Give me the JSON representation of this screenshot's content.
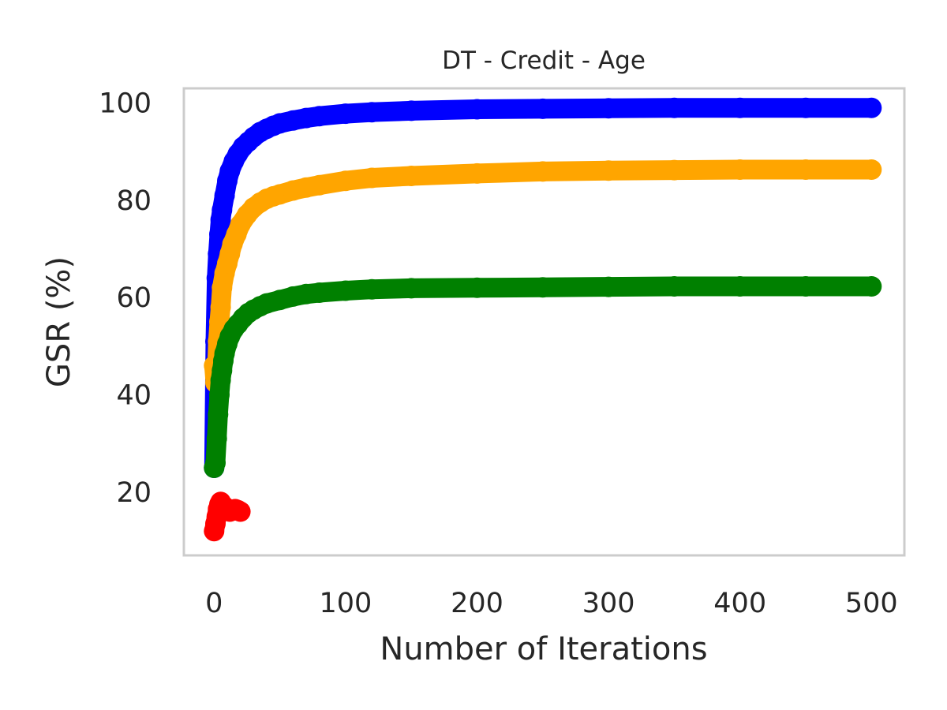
{
  "chart_data": {
    "type": "scatter",
    "title": "DT - Credit - Age",
    "xlabel": "Number of Iterations",
    "ylabel": "GSR (%)",
    "xlim": [
      -23,
      525
    ],
    "ylim": [
      7,
      103
    ],
    "xticks": [
      0,
      100,
      200,
      300,
      400,
      500
    ],
    "yticks": [
      20,
      40,
      60,
      80,
      100
    ],
    "grid": false,
    "legend": null,
    "frame_color": "#cccccc",
    "series": [
      {
        "color": "#0000ff",
        "x": [
          0,
          1,
          2,
          3,
          4,
          5,
          6,
          8,
          10,
          12,
          15,
          18,
          22,
          26,
          30,
          35,
          40,
          45,
          50,
          60,
          70,
          80,
          100,
          120,
          150,
          200,
          250,
          300,
          350,
          400,
          450,
          500
        ],
        "y": [
          25,
          51,
          64,
          69,
          73,
          76,
          78,
          81,
          84,
          86,
          88,
          89.5,
          91,
          92,
          93,
          94,
          94.7,
          95.3,
          95.8,
          96.4,
          96.9,
          97.3,
          97.8,
          98.1,
          98.4,
          98.7,
          98.8,
          98.9,
          99,
          99,
          99,
          99
        ]
      },
      {
        "color": "#ffa500",
        "x": [
          0,
          1,
          2,
          3,
          4,
          5,
          6,
          8,
          10,
          12,
          14,
          17,
          20,
          25,
          30,
          35,
          40,
          45,
          50,
          60,
          70,
          80,
          100,
          120,
          150,
          200,
          250,
          300,
          350,
          400,
          450,
          500
        ],
        "y": [
          46,
          42.5,
          44,
          51,
          55,
          58,
          62,
          65,
          67,
          69,
          71,
          73,
          75,
          77,
          78.5,
          79.5,
          80.3,
          80.8,
          81.2,
          82,
          82.6,
          83.1,
          84,
          84.6,
          85,
          85.5,
          85.9,
          86.1,
          86.2,
          86.3,
          86.3,
          86.3
        ]
      },
      {
        "color": "#008000",
        "x": [
          0,
          1,
          2,
          3,
          4,
          5,
          6,
          7,
          8,
          10,
          12,
          15,
          18,
          22,
          26,
          30,
          35,
          40,
          50,
          60,
          70,
          80,
          100,
          120,
          150,
          200,
          250,
          300,
          350,
          400,
          450,
          500
        ],
        "y": [
          25,
          26,
          31,
          36,
          40,
          43,
          45,
          47,
          48.5,
          50.5,
          52,
          53.5,
          54.5,
          55.8,
          56.8,
          57.5,
          58.2,
          58.8,
          59.5,
          60.2,
          60.7,
          61,
          61.4,
          61.7,
          61.9,
          62,
          62.1,
          62.2,
          62.3,
          62.3,
          62.3,
          62.3
        ]
      },
      {
        "color": "#ff0000",
        "x": [
          0,
          1,
          2,
          3,
          4,
          5,
          6,
          8,
          10,
          12,
          14,
          16,
          18,
          20
        ],
        "y": [
          12,
          13.5,
          15,
          16.5,
          17.5,
          18,
          17.5,
          17,
          16.5,
          16,
          16.2,
          16.5,
          16.3,
          16
        ]
      }
    ]
  }
}
